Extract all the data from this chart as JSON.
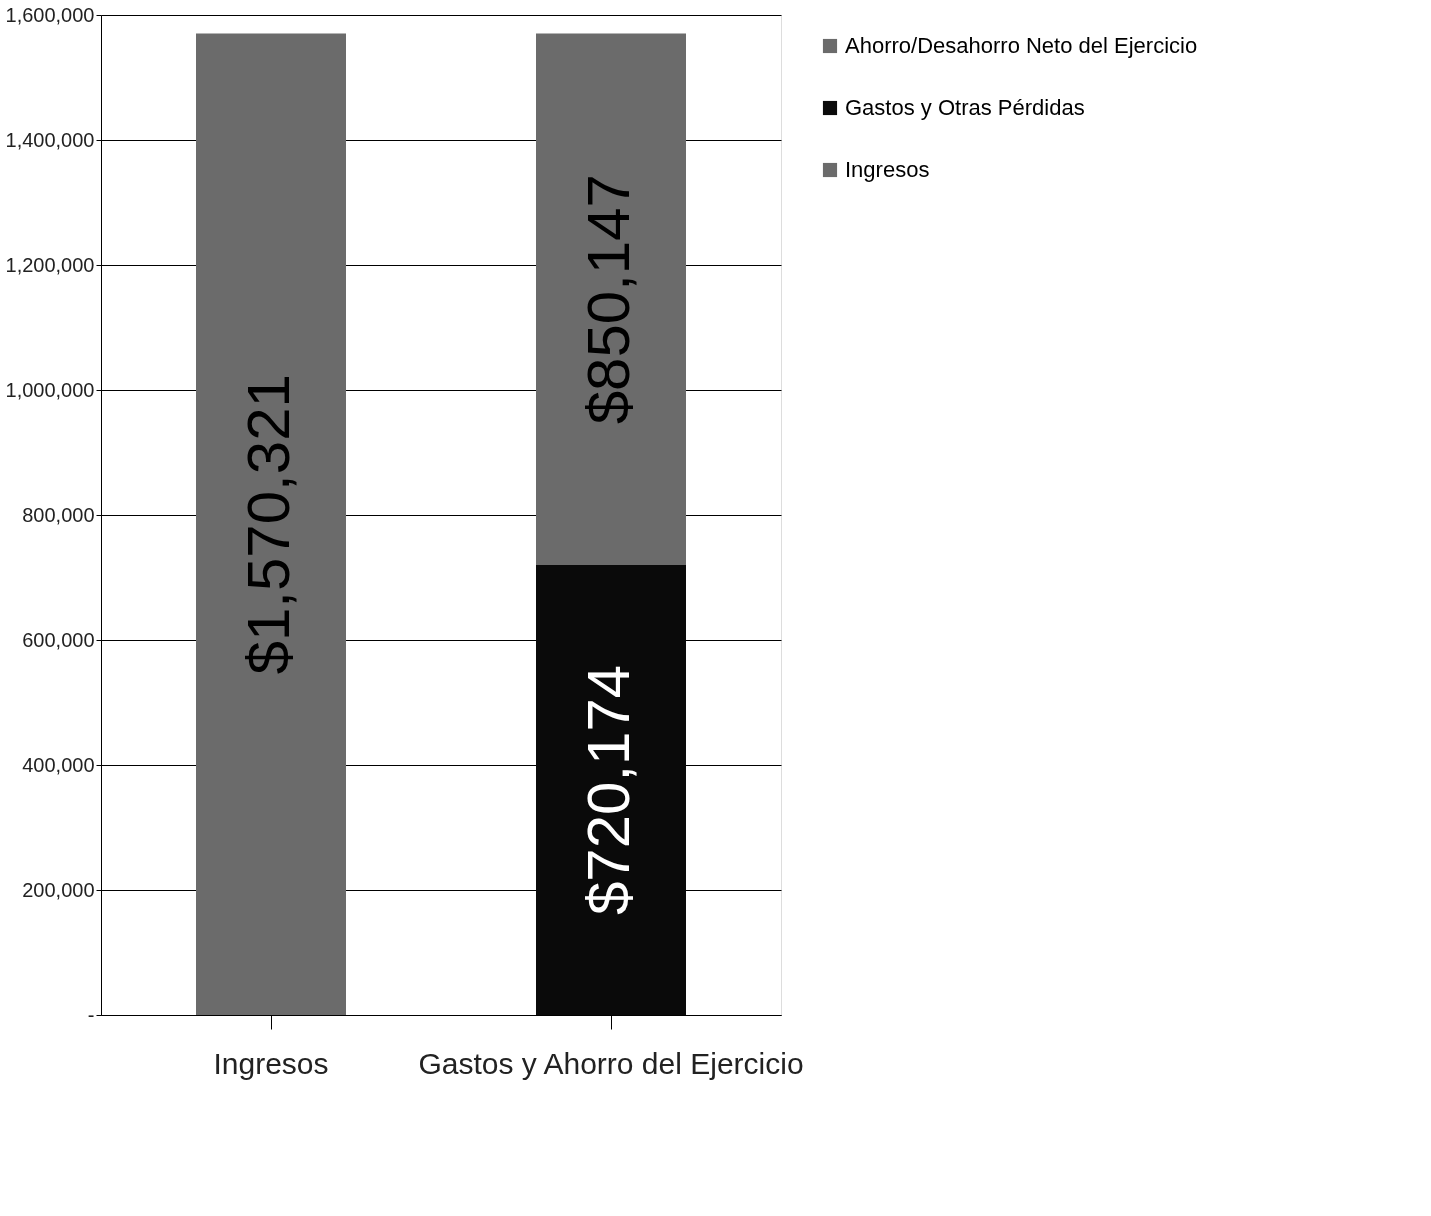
{
  "chart_data": {
    "type": "bar",
    "stacked": true,
    "categories": [
      "Ingresos",
      "Gastos y Ahorro del Ejercicio"
    ],
    "series": [
      {
        "name": "Ingresos",
        "color": "#6b6b6b",
        "values": [
          1570321,
          null
        ],
        "value_labels": [
          "$1,570,321",
          null
        ]
      },
      {
        "name": "Gastos y Otras Pérdidas",
        "color": "#0a0a0a",
        "values": [
          null,
          720174
        ],
        "value_labels": [
          null,
          "$720,174"
        ]
      },
      {
        "name": "Ahorro/Desahorro Neto del Ejercicio",
        "color": "#6b6b6b",
        "values": [
          null,
          850147
        ],
        "value_labels": [
          null,
          "$850,147"
        ]
      }
    ],
    "ylim": [
      0,
      1600000
    ],
    "yticks": [
      {
        "value": 0,
        "label": "-"
      },
      {
        "value": 200000,
        "label": "200,000"
      },
      {
        "value": 400000,
        "label": "400,000"
      },
      {
        "value": 600000,
        "label": "600,000"
      },
      {
        "value": 800000,
        "label": "800,000"
      },
      {
        "value": 1000000,
        "label": "1,000,000"
      },
      {
        "value": 1200000,
        "label": "1,200,000"
      },
      {
        "value": 1400000,
        "label": "1,400,000"
      },
      {
        "value": 1600000,
        "label": "1,600,000"
      }
    ],
    "grid": "y",
    "legend": "right"
  }
}
